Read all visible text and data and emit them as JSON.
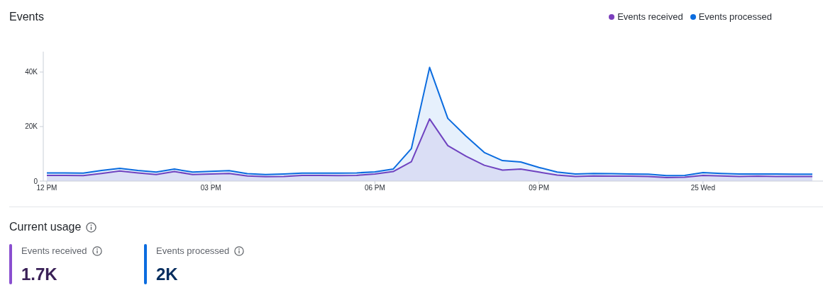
{
  "chart_data": [
    {
      "type": "area",
      "title": "Events",
      "categories": [
        "12 PM",
        null,
        null,
        null,
        null,
        null,
        null,
        null,
        null,
        "03 PM",
        null,
        null,
        null,
        null,
        null,
        null,
        null,
        null,
        "06 PM",
        null,
        null,
        null,
        null,
        null,
        null,
        null,
        null,
        "09 PM",
        null,
        null,
        null,
        null,
        null,
        null,
        null,
        null,
        "25 Wed",
        null,
        null,
        null,
        null,
        null,
        null
      ],
      "series": [
        {
          "name": "Events received",
          "color": "#7b3fbd",
          "values": [
            2100,
            2100,
            2000,
            2800,
            3700,
            3000,
            2400,
            3500,
            2400,
            2600,
            2800,
            1900,
            1600,
            1700,
            2100,
            2100,
            2000,
            2100,
            2600,
            3500,
            7100,
            22800,
            13000,
            9100,
            5800,
            4000,
            4400,
            3300,
            2200,
            1700,
            1900,
            1800,
            1800,
            1700,
            1300,
            1400,
            2100,
            1900,
            1700,
            1800,
            1700,
            1700,
            1700
          ]
        },
        {
          "name": "Events processed",
          "color": "#0b6cdf",
          "values": [
            3000,
            3000,
            2900,
            3900,
            4700,
            3900,
            3300,
            4400,
            3300,
            3600,
            3800,
            2700,
            2400,
            2600,
            2900,
            2900,
            2900,
            3000,
            3400,
            4400,
            11900,
            41700,
            23000,
            16500,
            10500,
            7500,
            7000,
            5000,
            3300,
            2600,
            2800,
            2700,
            2600,
            2500,
            2000,
            2100,
            3100,
            2800,
            2600,
            2600,
            2600,
            2500,
            2500
          ]
        }
      ],
      "ylim": [
        0,
        47500
      ],
      "yticks": [
        0,
        {
          "value": 20000,
          "label": "20K"
        },
        {
          "value": 40000,
          "label": "40K"
        }
      ],
      "legend": "top right"
    },
    {
      "type": "other",
      "title": "Current usage",
      "categories": [
        "Events received",
        "Events processed"
      ],
      "value_labels": [
        "1.7K",
        "2K"
      ],
      "colors": [
        "#8a4fd0",
        "#0b6cdf"
      ]
    }
  ]
}
